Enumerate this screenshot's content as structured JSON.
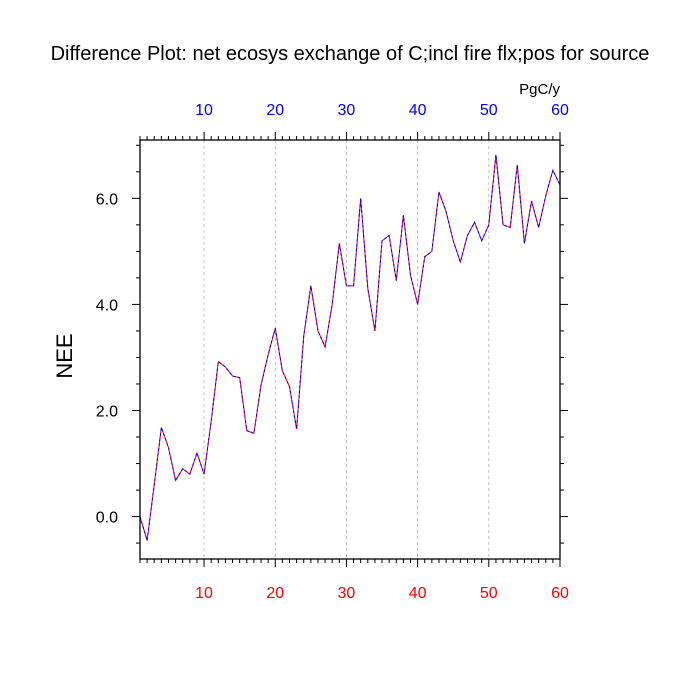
{
  "chart_data": {
    "type": "line",
    "title": "Difference Plot: net ecosys exchange of C;incl fire flx;pos for source",
    "units": "PgC/y",
    "ylabel": "NEE",
    "xlabel": "",
    "xlim": [
      1,
      60
    ],
    "ylim": [
      -0.8,
      7.1
    ],
    "grid": "vertical dashed at major x ticks",
    "x_major_ticks": [
      10,
      20,
      30,
      40,
      50,
      60
    ],
    "x_tick_labels": [
      "10",
      "20",
      "30",
      "40",
      "50",
      "60"
    ],
    "y_major_ticks": [
      0.0,
      2.0,
      4.0,
      6.0
    ],
    "y_tick_labels": [
      "0.0",
      "2.0",
      "4.0",
      "6.0"
    ],
    "colors": {
      "bottom_axis_labels": "#ff0000",
      "top_axis_labels": "#0000ff",
      "series_primary": "#ff0000",
      "series_overlay": "#0000ff",
      "grid": "#b0b0b0",
      "frame": "#000000"
    },
    "x": [
      1,
      2,
      3,
      4,
      5,
      6,
      7,
      8,
      9,
      10,
      11,
      12,
      13,
      14,
      15,
      16,
      17,
      18,
      19,
      20,
      21,
      22,
      23,
      24,
      25,
      26,
      27,
      28,
      29,
      30,
      31,
      32,
      33,
      34,
      35,
      36,
      37,
      38,
      39,
      40,
      41,
      42,
      43,
      44,
      45,
      46,
      47,
      48,
      49,
      50,
      51,
      52,
      53,
      54,
      55,
      56,
      57,
      58,
      59,
      60
    ],
    "series": [
      {
        "values": [
          0.0,
          -0.45,
          0.6,
          1.68,
          1.3,
          0.68,
          0.9,
          0.8,
          1.2,
          0.8,
          1.8,
          2.92,
          2.82,
          2.65,
          2.62,
          1.62,
          1.57,
          2.48,
          3.05,
          3.55,
          2.75,
          2.45,
          1.65,
          3.4,
          4.35,
          3.5,
          3.2,
          4.0,
          5.15,
          4.35,
          4.35,
          6.0,
          4.3,
          3.5,
          5.2,
          5.3,
          4.45,
          5.68,
          4.55,
          4.0,
          4.9,
          5.0,
          6.12,
          5.75,
          5.2,
          4.8,
          5.3,
          5.55,
          5.2,
          5.5,
          6.82,
          5.5,
          5.45,
          6.63,
          5.15,
          5.95,
          5.45,
          6.05,
          6.53,
          6.25
        ]
      }
    ]
  }
}
